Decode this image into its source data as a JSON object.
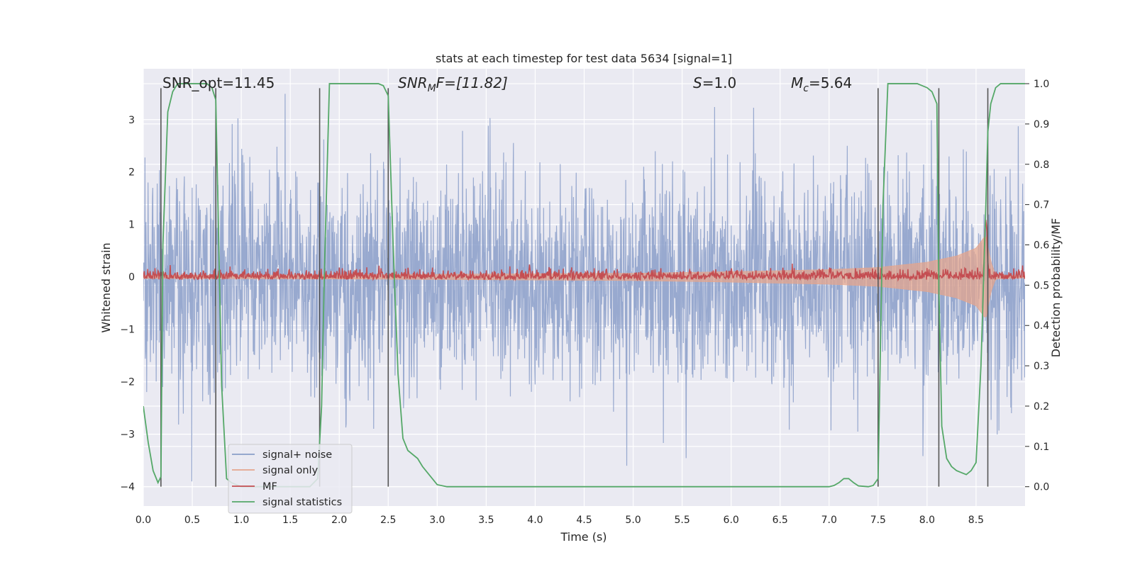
{
  "chart_data": {
    "type": "line",
    "title": "stats at each timestep for test data 5634 [signal=1]",
    "xlabel": "Time (s)",
    "ylabel_left": "Whitened strain",
    "ylabel_right": "Detection probability/MF",
    "xlim": [
      0.0,
      9.0
    ],
    "ylim_left": [
      -4.37,
      3.97
    ],
    "ylim_right": [
      -0.048,
      1.037
    ],
    "x_ticks": [
      "0.0",
      "0.5",
      "1.0",
      "1.5",
      "2.0",
      "2.5",
      "3.0",
      "3.5",
      "4.0",
      "4.5",
      "5.0",
      "5.5",
      "6.0",
      "6.5",
      "7.0",
      "7.5",
      "8.0",
      "8.5"
    ],
    "y_ticks_left": [
      "−4",
      "−3",
      "−2",
      "−1",
      "0",
      "1",
      "2",
      "3"
    ],
    "y_ticks_left_values": [
      -4,
      -3,
      -2,
      -1,
      0,
      1,
      2,
      3
    ],
    "y_ticks_right": [
      "0.0",
      "0.1",
      "0.2",
      "0.3",
      "0.4",
      "0.5",
      "0.6",
      "0.7",
      "0.8",
      "0.9",
      "1.0"
    ],
    "y_ticks_right_values": [
      0.0,
      0.1,
      0.2,
      0.3,
      0.4,
      0.5,
      0.6,
      0.7,
      0.8,
      0.9,
      1.0
    ],
    "annotations": [
      {
        "label": "SNR_opt=11.45",
        "x": 0.19
      },
      {
        "label": "SNR_MF=[11.82]",
        "x": 2.6
      },
      {
        "label": "S=1.0",
        "x": 5.6
      },
      {
        "label": "M_c=5.64",
        "x": 6.6
      }
    ],
    "annotation_parts": {
      "snr_mf_main": "SNR",
      "snr_mf_sub": "M",
      "snr_mf_tail": "F=[11.82]",
      "s_main": "S",
      "s_tail": "=1.0",
      "mc_main": "M",
      "mc_sub": "c",
      "mc_tail": "=5.64"
    },
    "vertical_markers": [
      0.18,
      0.74,
      1.8,
      2.5,
      7.5,
      8.12,
      8.62
    ],
    "legend": {
      "placement": "lower-left",
      "entries": [
        "signal+ noise",
        "signal only",
        "MF",
        "signal statistics"
      ]
    },
    "colors": {
      "noise": "#8a9ec9",
      "signal": "#e4a58d",
      "mf": "#c44e52",
      "stats": "#55a868",
      "marker": "#555555",
      "background": "#eaeaf2",
      "grid": "#ffffff"
    },
    "series": [
      {
        "name": "signal statistics",
        "axis": "right",
        "x": [
          0.0,
          0.05,
          0.1,
          0.15,
          0.18,
          0.2,
          0.25,
          0.3,
          0.35,
          0.4,
          0.5,
          0.6,
          0.65,
          0.7,
          0.74,
          0.8,
          0.85,
          0.9,
          1.0,
          1.2,
          1.5,
          1.7,
          1.78,
          1.82,
          1.85,
          1.9,
          2.0,
          2.1,
          2.3,
          2.4,
          2.45,
          2.5,
          2.55,
          2.6,
          2.65,
          2.7,
          2.8,
          2.85,
          2.9,
          2.95,
          3.0,
          3.1,
          3.5,
          4.0,
          5.0,
          6.0,
          6.2,
          6.3,
          6.5,
          7.0,
          7.05,
          7.1,
          7.15,
          7.2,
          7.25,
          7.3,
          7.4,
          7.45,
          7.5,
          7.55,
          7.6,
          7.7,
          7.9,
          8.0,
          8.05,
          8.1,
          8.12,
          8.15,
          8.2,
          8.25,
          8.3,
          8.35,
          8.4,
          8.45,
          8.5,
          8.55,
          8.6,
          8.62,
          8.65,
          8.7,
          8.75,
          8.8,
          9.0
        ],
        "values": [
          0.2,
          0.11,
          0.04,
          0.01,
          0.025,
          0.6,
          0.93,
          0.98,
          1.0,
          1.0,
          1.0,
          1.0,
          1.0,
          0.99,
          0.96,
          0.25,
          0.02,
          0.01,
          0.0,
          0.0,
          0.0,
          0.0,
          0.02,
          0.2,
          0.55,
          1.0,
          1.0,
          1.0,
          1.0,
          1.0,
          0.995,
          0.97,
          0.6,
          0.28,
          0.12,
          0.09,
          0.07,
          0.05,
          0.035,
          0.02,
          0.005,
          0.0,
          0.0,
          0.0,
          0.0,
          0.0,
          0.0,
          0.0,
          0.0,
          0.0,
          0.003,
          0.01,
          0.02,
          0.02,
          0.01,
          0.002,
          0.0,
          0.003,
          0.02,
          0.7,
          1.0,
          1.0,
          1.0,
          0.99,
          0.98,
          0.95,
          0.5,
          0.15,
          0.07,
          0.05,
          0.04,
          0.035,
          0.03,
          0.04,
          0.06,
          0.3,
          0.7,
          0.88,
          0.95,
          0.99,
          1.0,
          1.0,
          1.0
        ]
      },
      {
        "name": "signal only",
        "axis": "left",
        "description": "chirp; amplitude envelope grows with time",
        "envelope_x": [
          0.0,
          2.0,
          4.0,
          5.0,
          6.0,
          7.0,
          7.5,
          8.0,
          8.3,
          8.5,
          8.6,
          8.65,
          8.7,
          9.0
        ],
        "envelope_amplitude": [
          0.03,
          0.04,
          0.06,
          0.07,
          0.1,
          0.14,
          0.18,
          0.28,
          0.4,
          0.55,
          0.8,
          0.3,
          0.04,
          0.02
        ]
      },
      {
        "name": "MF",
        "axis": "right",
        "baseline": 0.515,
        "peak_x": 8.6,
        "peak_value": 0.66
      },
      {
        "name": "signal+ noise",
        "axis": "left",
        "description": "whitened noise, roughly uniform amplitude ~±3.3, extreme values about 3.5 and -3.9"
      }
    ]
  }
}
